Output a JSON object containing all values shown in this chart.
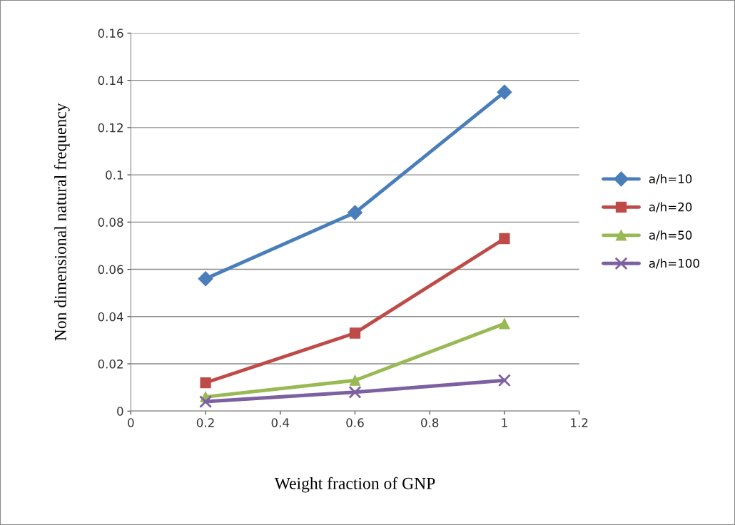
{
  "chart_data": {
    "type": "line",
    "xlabel": "Weight fraction of GNP",
    "ylabel": "Non dimensional natural frequency",
    "x": [
      0.2,
      0.6,
      1.0
    ],
    "series": [
      {
        "name": "a/h=10",
        "color": "#4a7ebb",
        "marker": "diamond",
        "values": [
          0.056,
          0.084,
          0.135
        ]
      },
      {
        "name": "a/h=20",
        "color": "#be4b48",
        "marker": "square",
        "values": [
          0.012,
          0.033,
          0.073
        ]
      },
      {
        "name": "a/h=50",
        "color": "#98b954",
        "marker": "triangle",
        "values": [
          0.006,
          0.013,
          0.037
        ]
      },
      {
        "name": "a/h=100",
        "color": "#7d60a0",
        "marker": "cross",
        "values": [
          0.004,
          0.008,
          0.013
        ]
      }
    ],
    "xlim": [
      0,
      1.2
    ],
    "xticks": [
      0,
      0.2,
      0.4,
      0.6,
      0.8,
      1,
      1.2
    ],
    "ylim": [
      0,
      0.16
    ],
    "yticks": [
      0,
      0.02,
      0.04,
      0.06,
      0.08,
      0.1,
      0.12,
      0.14,
      0.16
    ],
    "grid": "y",
    "legend": "right",
    "line_style": "solid"
  }
}
